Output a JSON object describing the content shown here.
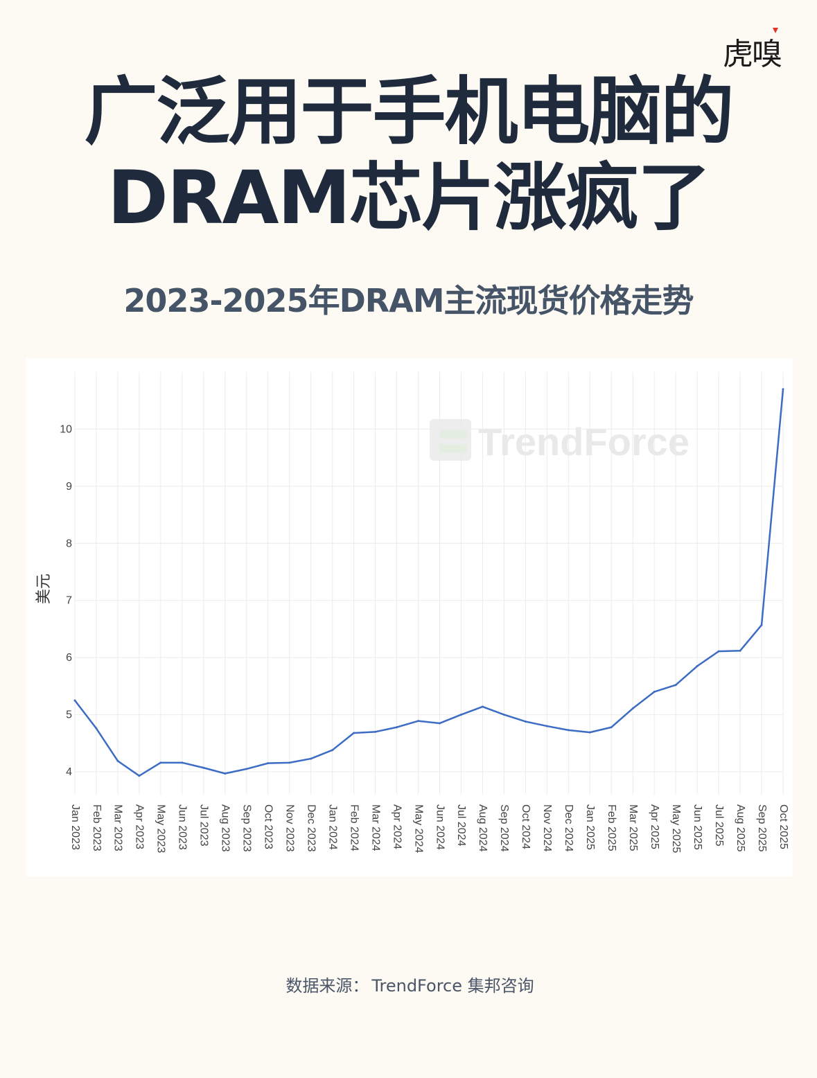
{
  "brand": {
    "logo_text": "虎嗅",
    "accent": "#e0332b"
  },
  "headline": {
    "line1": "广泛用于手机电脑的",
    "line2": "DRAM芯片涨疯了"
  },
  "subtitle": "2023-2025年DRAM主流现货价格走势",
  "watermark": "TrendForce",
  "source": {
    "label": "数据来源：",
    "text": "TrendForce 集邦咨询"
  },
  "colors": {
    "line": "#3d6cc4",
    "grid": "#ebebeb",
    "title": "#1f2a3c",
    "subtitle": "#465468",
    "background": "#fdfaf3"
  },
  "chart_data": {
    "type": "line",
    "ylabel": "美元",
    "xlabel": "",
    "ylim": [
      3.6,
      11.0
    ],
    "yticks": [
      4,
      5,
      6,
      7,
      8,
      9,
      10
    ],
    "grid": true,
    "categories": [
      "Jan 2023",
      "Feb 2023",
      "Mar 2023",
      "Apr 2023",
      "May 2023",
      "Jun 2023",
      "Jul 2023",
      "Aug 2023",
      "Sep 2023",
      "Oct 2023",
      "Nov 2023",
      "Dec 2023",
      "Jan 2024",
      "Feb 2024",
      "Mar 2024",
      "Apr 2024",
      "May 2024",
      "Jun 2024",
      "Jul 2024",
      "Aug 2024",
      "Sep 2024",
      "Oct 2024",
      "Nov 2024",
      "Dec 2024",
      "Jan 2025",
      "Feb 2025",
      "Mar 2025",
      "Apr 2025",
      "May 2025",
      "Jun 2025",
      "Jul 2025",
      "Aug 2025",
      "Sep 2025",
      "Oct 2025"
    ],
    "series": [
      {
        "values": [
          5.25,
          4.76,
          4.19,
          3.93,
          4.16,
          4.16,
          4.07,
          3.97,
          4.05,
          4.15,
          4.16,
          4.23,
          4.38,
          4.68,
          4.7,
          4.78,
          4.89,
          4.85,
          5.0,
          5.14,
          5.0,
          4.88,
          4.8,
          4.73,
          4.69,
          4.78,
          5.11,
          5.4,
          5.52,
          5.85,
          6.11,
          6.12,
          6.57,
          10.7
        ]
      }
    ]
  }
}
